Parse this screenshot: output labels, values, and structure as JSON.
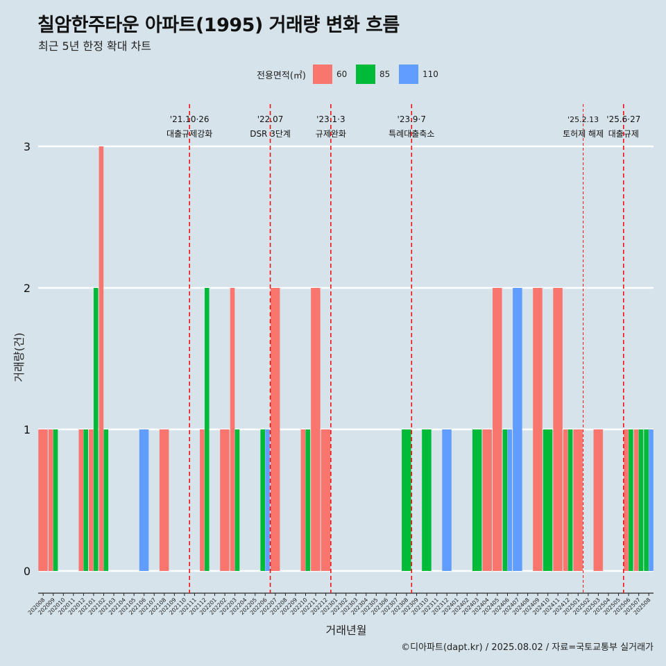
{
  "title": "칠암한주타운 아파트(1995) 거래량 변화 흐름",
  "subtitle": "최근 5년 한정 확대 차트",
  "caption": "©디아파트(dapt.kr) / 2025.08.02 / 자료=국토교통부 실거래가",
  "colors": {
    "background": "#d6e3ea",
    "gridline": "#ffffff",
    "event_line": "#ee1111",
    "series": {
      "60": "#f8766d",
      "85": "#00ba38",
      "110": "#619cff"
    }
  },
  "legend": {
    "title": "전용면적(㎡)",
    "items": [
      {
        "label": "60",
        "color": "#f8766d"
      },
      {
        "label": "85",
        "color": "#00ba38"
      },
      {
        "label": "110",
        "color": "#619cff"
      }
    ]
  },
  "chart_data": {
    "type": "bar",
    "bar_mode": "dodge",
    "xlabel": "거래년월",
    "ylabel": "거래량(건)",
    "ylim": [
      0,
      3
    ],
    "yticks": [
      0,
      1,
      2,
      3
    ],
    "grid": true,
    "legend_position": "top",
    "x": [
      "202008",
      "202009",
      "202010",
      "202011",
      "202012",
      "202101",
      "202102",
      "202103",
      "202104",
      "202105",
      "202106",
      "202107",
      "202108",
      "202109",
      "202110",
      "202111",
      "202112",
      "202201",
      "202202",
      "202203",
      "202204",
      "202205",
      "202206",
      "202207",
      "202208",
      "202209",
      "202210",
      "202211",
      "202212",
      "202301",
      "202302",
      "202303",
      "202304",
      "202305",
      "202306",
      "202307",
      "202308",
      "202309",
      "202310",
      "202311",
      "202312",
      "202401",
      "202402",
      "202403",
      "202404",
      "202405",
      "202406",
      "202407",
      "202408",
      "202409",
      "202410",
      "202411",
      "202412",
      "202501",
      "202502",
      "202503",
      "202504",
      "202505",
      "202506",
      "202507",
      "202508"
    ],
    "bars": [
      {
        "month": "202008",
        "area": "60",
        "count": 1,
        "slot": 0,
        "nslots": 1
      },
      {
        "month": "202009",
        "area": "60",
        "count": 1,
        "slot": 0,
        "nslots": 2
      },
      {
        "month": "202009",
        "area": "85",
        "count": 1,
        "slot": 1,
        "nslots": 2
      },
      {
        "month": "202012",
        "area": "60",
        "count": 1,
        "slot": 0,
        "nslots": 2
      },
      {
        "month": "202012",
        "area": "85",
        "count": 1,
        "slot": 1,
        "nslots": 2
      },
      {
        "month": "202101",
        "area": "60",
        "count": 1,
        "slot": 0,
        "nslots": 2
      },
      {
        "month": "202101",
        "area": "85",
        "count": 2,
        "slot": 1,
        "nslots": 2
      },
      {
        "month": "202102",
        "area": "60",
        "count": 3,
        "slot": 0,
        "nslots": 2
      },
      {
        "month": "202102",
        "area": "85",
        "count": 1,
        "slot": 1,
        "nslots": 2
      },
      {
        "month": "202106",
        "area": "110",
        "count": 1,
        "slot": 0,
        "nslots": 1
      },
      {
        "month": "202108",
        "area": "60",
        "count": 1,
        "slot": 0,
        "nslots": 1
      },
      {
        "month": "202112",
        "area": "60",
        "count": 1,
        "slot": 0,
        "nslots": 2
      },
      {
        "month": "202112",
        "area": "85",
        "count": 2,
        "slot": 1,
        "nslots": 2
      },
      {
        "month": "202202",
        "area": "60",
        "count": 1,
        "slot": 0,
        "nslots": 1
      },
      {
        "month": "202203",
        "area": "60",
        "count": 2,
        "slot": 0,
        "nslots": 2
      },
      {
        "month": "202203",
        "area": "85",
        "count": 1,
        "slot": 1,
        "nslots": 2
      },
      {
        "month": "202206",
        "area": "85",
        "count": 1,
        "slot": 0,
        "nslots": 2
      },
      {
        "month": "202206",
        "area": "110",
        "count": 1,
        "slot": 1,
        "nslots": 2
      },
      {
        "month": "202207",
        "area": "60",
        "count": 2,
        "slot": 0,
        "nslots": 1
      },
      {
        "month": "202210",
        "area": "60",
        "count": 1,
        "slot": 0,
        "nslots": 2
      },
      {
        "month": "202210",
        "area": "85",
        "count": 1,
        "slot": 1,
        "nslots": 2
      },
      {
        "month": "202211",
        "area": "60",
        "count": 2,
        "slot": 0,
        "nslots": 1
      },
      {
        "month": "202212",
        "area": "60",
        "count": 1,
        "slot": 0,
        "nslots": 1
      },
      {
        "month": "202308",
        "area": "85",
        "count": 1,
        "slot": 0,
        "nslots": 1
      },
      {
        "month": "202310",
        "area": "85",
        "count": 1,
        "slot": 0,
        "nslots": 1
      },
      {
        "month": "202312",
        "area": "110",
        "count": 1,
        "slot": 0,
        "nslots": 1
      },
      {
        "month": "202403",
        "area": "85",
        "count": 1,
        "slot": 0,
        "nslots": 1
      },
      {
        "month": "202404",
        "area": "60",
        "count": 1,
        "slot": 0,
        "nslots": 1
      },
      {
        "month": "202405",
        "area": "60",
        "count": 2,
        "slot": 0,
        "nslots": 1
      },
      {
        "month": "202406",
        "area": "85",
        "count": 1,
        "slot": 0,
        "nslots": 2
      },
      {
        "month": "202406",
        "area": "110",
        "count": 1,
        "slot": 1,
        "nslots": 2
      },
      {
        "month": "202407",
        "area": "110",
        "count": 2,
        "slot": 0,
        "nslots": 1
      },
      {
        "month": "202409",
        "area": "60",
        "count": 2,
        "slot": 0,
        "nslots": 1
      },
      {
        "month": "202410",
        "area": "85",
        "count": 1,
        "slot": 0,
        "nslots": 1
      },
      {
        "month": "202411",
        "area": "60",
        "count": 2,
        "slot": 0,
        "nslots": 1
      },
      {
        "month": "202412",
        "area": "60",
        "count": 1,
        "slot": 0,
        "nslots": 2
      },
      {
        "month": "202412",
        "area": "85",
        "count": 1,
        "slot": 1,
        "nslots": 2
      },
      {
        "month": "202501",
        "area": "60",
        "count": 1,
        "slot": 0,
        "nslots": 1
      },
      {
        "month": "202503",
        "area": "60",
        "count": 1,
        "slot": 0,
        "nslots": 1
      },
      {
        "month": "202506",
        "area": "60",
        "count": 1,
        "slot": 0,
        "nslots": 2
      },
      {
        "month": "202506",
        "area": "85",
        "count": 1,
        "slot": 1,
        "nslots": 2
      },
      {
        "month": "202507",
        "area": "60",
        "count": 1,
        "slot": 0,
        "nslots": 2
      },
      {
        "month": "202507",
        "area": "85",
        "count": 1,
        "slot": 1,
        "nslots": 2
      },
      {
        "month": "202508",
        "area": "85",
        "count": 1,
        "slot": 0,
        "nslots": 2
      },
      {
        "month": "202508",
        "area": "110",
        "count": 1,
        "slot": 1,
        "nslots": 2
      }
    ],
    "events": [
      {
        "month": "202111",
        "date": "'21.10·26",
        "label": "대출규제강화",
        "style": "dashed"
      },
      {
        "month": "202207",
        "date": "'22.07",
        "label": "DSR 3단계",
        "style": "dashed"
      },
      {
        "month": "202301",
        "date": "'23.1·3",
        "label": "규제완화",
        "style": "dashed"
      },
      {
        "month": "202309",
        "date": "'23.9·7",
        "label": "특례대출축소",
        "style": "dashed"
      },
      {
        "month": "202502",
        "date": "'25.2.13",
        "label": "토허제 해제",
        "style": "thin"
      },
      {
        "month": "202506",
        "date": "'25.6·27",
        "label": "대출규제",
        "style": "dashed"
      }
    ]
  }
}
